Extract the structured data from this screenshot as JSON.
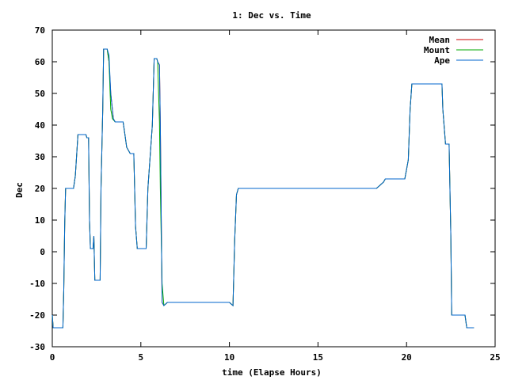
{
  "chart_data": {
    "type": "line",
    "title": "1: Dec vs. Time",
    "xlabel": "time (Elapse Hours)",
    "ylabel": "Dec",
    "xlim": [
      0,
      25
    ],
    "ylim": [
      -30,
      70
    ],
    "x_ticks": [
      "0",
      "5",
      "10",
      "15",
      "20",
      "25"
    ],
    "y_ticks": [
      "-30",
      "-20",
      "-10",
      "0",
      "10",
      "20",
      "30",
      "40",
      "50",
      "60",
      "70"
    ],
    "grid": false,
    "legend_position": "top-right",
    "series": [
      {
        "name": "Mean",
        "color": "#cc0000",
        "points": [
          [
            0,
            -20
          ],
          [
            0.05,
            -24
          ],
          [
            0.6,
            -24
          ],
          [
            0.65,
            -12
          ],
          [
            0.7,
            9
          ],
          [
            0.75,
            20
          ],
          [
            1.2,
            20
          ],
          [
            1.3,
            24
          ],
          [
            1.45,
            37
          ],
          [
            1.9,
            37
          ],
          [
            1.95,
            36
          ],
          [
            2.05,
            36
          ],
          [
            2.1,
            10
          ],
          [
            2.15,
            1
          ],
          [
            2.3,
            1
          ],
          [
            2.35,
            5
          ],
          [
            2.4,
            -9
          ],
          [
            2.7,
            -9
          ],
          [
            2.75,
            20
          ],
          [
            2.85,
            45
          ],
          [
            2.9,
            64
          ],
          [
            3.1,
            64
          ],
          [
            3.2,
            60
          ],
          [
            3.3,
            50
          ],
          [
            3.45,
            42
          ],
          [
            3.55,
            41
          ],
          [
            4.0,
            41
          ],
          [
            4.1,
            37
          ],
          [
            4.2,
            33
          ],
          [
            4.4,
            31
          ],
          [
            4.6,
            31
          ],
          [
            4.7,
            8
          ],
          [
            4.8,
            1
          ],
          [
            5.3,
            1
          ],
          [
            5.4,
            20
          ],
          [
            5.65,
            40
          ],
          [
            5.75,
            61
          ],
          [
            5.9,
            61
          ],
          [
            5.95,
            60
          ],
          [
            6.05,
            59
          ],
          [
            6.1,
            40
          ],
          [
            6.2,
            -16
          ],
          [
            6.3,
            -17
          ],
          [
            6.5,
            -16
          ],
          [
            10.0,
            -16
          ],
          [
            10.2,
            -17
          ],
          [
            10.3,
            4
          ],
          [
            10.4,
            18
          ],
          [
            10.5,
            20
          ],
          [
            18.3,
            20
          ],
          [
            18.5,
            21
          ],
          [
            18.7,
            22
          ],
          [
            18.8,
            23
          ],
          [
            19.9,
            23
          ],
          [
            20.0,
            26
          ],
          [
            20.1,
            29
          ],
          [
            20.2,
            45
          ],
          [
            20.3,
            53
          ],
          [
            22.0,
            53
          ],
          [
            22.05,
            45
          ],
          [
            22.2,
            34
          ],
          [
            22.4,
            34
          ],
          [
            22.5,
            5
          ],
          [
            22.55,
            -20
          ],
          [
            23.3,
            -20
          ],
          [
            23.4,
            -24
          ],
          [
            23.8,
            -24
          ]
        ]
      },
      {
        "name": "Mount",
        "color": "#00aa00",
        "points": [
          [
            0,
            -20
          ],
          [
            0.05,
            -24
          ],
          [
            0.6,
            -24
          ],
          [
            0.65,
            -12
          ],
          [
            0.7,
            9
          ],
          [
            0.75,
            20
          ],
          [
            1.2,
            20
          ],
          [
            1.3,
            24
          ],
          [
            1.45,
            37
          ],
          [
            1.9,
            37
          ],
          [
            1.95,
            36
          ],
          [
            2.05,
            36
          ],
          [
            2.1,
            10
          ],
          [
            2.15,
            1
          ],
          [
            2.3,
            1
          ],
          [
            2.35,
            5
          ],
          [
            2.4,
            -9
          ],
          [
            2.7,
            -9
          ],
          [
            2.75,
            20
          ],
          [
            2.85,
            45
          ],
          [
            2.9,
            64
          ],
          [
            3.1,
            64
          ],
          [
            3.2,
            60
          ],
          [
            3.3,
            45
          ],
          [
            3.4,
            42
          ],
          [
            3.55,
            41
          ],
          [
            4.0,
            41
          ],
          [
            4.1,
            37
          ],
          [
            4.2,
            33
          ],
          [
            4.4,
            31
          ],
          [
            4.6,
            31
          ],
          [
            4.7,
            8
          ],
          [
            4.8,
            1
          ],
          [
            5.3,
            1
          ],
          [
            5.4,
            20
          ],
          [
            5.65,
            40
          ],
          [
            5.75,
            61
          ],
          [
            5.9,
            61
          ],
          [
            5.95,
            60
          ],
          [
            6.05,
            41
          ],
          [
            6.1,
            20
          ],
          [
            6.2,
            -10
          ],
          [
            6.3,
            -17
          ],
          [
            6.5,
            -16
          ],
          [
            10.0,
            -16
          ],
          [
            10.2,
            -17
          ],
          [
            10.3,
            4
          ],
          [
            10.4,
            18
          ],
          [
            10.5,
            20
          ],
          [
            18.3,
            20
          ],
          [
            18.5,
            21
          ],
          [
            18.7,
            22
          ],
          [
            18.8,
            23
          ],
          [
            19.9,
            23
          ],
          [
            20.0,
            26
          ],
          [
            20.1,
            29
          ],
          [
            20.2,
            45
          ],
          [
            20.3,
            53
          ],
          [
            22.0,
            53
          ],
          [
            22.05,
            45
          ],
          [
            22.2,
            34
          ],
          [
            22.4,
            34
          ],
          [
            22.5,
            5
          ],
          [
            22.55,
            -20
          ],
          [
            23.3,
            -20
          ],
          [
            23.4,
            -24
          ],
          [
            23.8,
            -24
          ]
        ]
      },
      {
        "name": "Ape",
        "color": "#0066cc",
        "points": [
          [
            0,
            -20
          ],
          [
            0.05,
            -24
          ],
          [
            0.6,
            -24
          ],
          [
            0.65,
            -12
          ],
          [
            0.7,
            9
          ],
          [
            0.75,
            20
          ],
          [
            1.2,
            20
          ],
          [
            1.3,
            24
          ],
          [
            1.45,
            37
          ],
          [
            1.9,
            37
          ],
          [
            1.95,
            36
          ],
          [
            2.05,
            36
          ],
          [
            2.1,
            10
          ],
          [
            2.15,
            1
          ],
          [
            2.3,
            1
          ],
          [
            2.35,
            5
          ],
          [
            2.4,
            -9
          ],
          [
            2.7,
            -9
          ],
          [
            2.75,
            20
          ],
          [
            2.85,
            45
          ],
          [
            2.9,
            64
          ],
          [
            3.1,
            64
          ],
          [
            3.2,
            62
          ],
          [
            3.3,
            50
          ],
          [
            3.45,
            42
          ],
          [
            3.55,
            41
          ],
          [
            4.0,
            41
          ],
          [
            4.1,
            37
          ],
          [
            4.2,
            33
          ],
          [
            4.4,
            31
          ],
          [
            4.6,
            31
          ],
          [
            4.7,
            8
          ],
          [
            4.8,
            1
          ],
          [
            5.3,
            1
          ],
          [
            5.4,
            20
          ],
          [
            5.65,
            40
          ],
          [
            5.75,
            61
          ],
          [
            5.9,
            61
          ],
          [
            5.95,
            60
          ],
          [
            6.05,
            59
          ],
          [
            6.1,
            40
          ],
          [
            6.2,
            -16
          ],
          [
            6.3,
            -17
          ],
          [
            6.5,
            -16
          ],
          [
            10.0,
            -16
          ],
          [
            10.2,
            -17
          ],
          [
            10.3,
            4
          ],
          [
            10.4,
            18
          ],
          [
            10.5,
            20
          ],
          [
            18.3,
            20
          ],
          [
            18.5,
            21
          ],
          [
            18.7,
            22
          ],
          [
            18.8,
            23
          ],
          [
            19.9,
            23
          ],
          [
            20.0,
            26
          ],
          [
            20.1,
            29
          ],
          [
            20.2,
            45
          ],
          [
            20.3,
            53
          ],
          [
            22.0,
            53
          ],
          [
            22.05,
            45
          ],
          [
            22.2,
            34
          ],
          [
            22.4,
            34
          ],
          [
            22.5,
            5
          ],
          [
            22.55,
            -20
          ],
          [
            23.3,
            -20
          ],
          [
            23.4,
            -24
          ],
          [
            23.8,
            -24
          ]
        ]
      }
    ]
  }
}
